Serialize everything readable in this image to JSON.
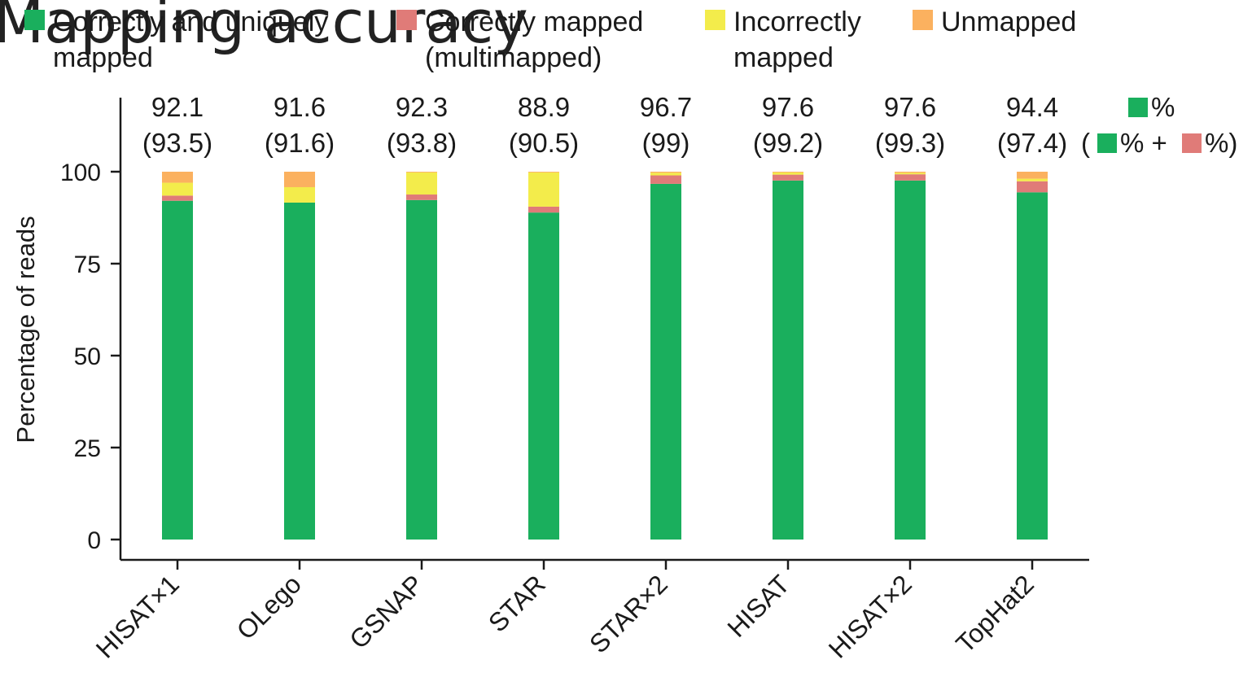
{
  "chart_data": {
    "type": "bar",
    "stacked": true,
    "title": "Mapping accuracy",
    "ylabel": "Percentage of reads",
    "xlabel": "",
    "ylim": [
      0,
      100
    ],
    "yticks": [
      "0",
      "25",
      "50",
      "75",
      "100"
    ],
    "grid": false,
    "legend_position": "top",
    "categories": [
      "HISAT×1",
      "OLego",
      "GSNAP",
      "STAR",
      "STAR×2",
      "HISAT",
      "HISAT×2",
      "TopHat2"
    ],
    "series": [
      {
        "name": "Correctly and uniquely mapped",
        "color": "#1aaf5d",
        "values": [
          92.1,
          91.6,
          92.3,
          88.9,
          96.7,
          97.6,
          97.6,
          94.4
        ]
      },
      {
        "name": "Correctly mapped (multimapped)",
        "color": "#e07b78",
        "values": [
          1.4,
          0.0,
          1.5,
          1.6,
          2.3,
          1.6,
          1.7,
          3.0
        ]
      },
      {
        "name": "Incorrectly mapped",
        "color": "#f3ec4b",
        "values": [
          3.5,
          4.2,
          6.0,
          9.3,
          0.7,
          0.6,
          0.4,
          0.7
        ]
      },
      {
        "name": "Unmapped",
        "color": "#fbb15f",
        "values": [
          3.0,
          4.2,
          0.2,
          0.2,
          0.3,
          0.2,
          0.3,
          1.9
        ]
      }
    ],
    "legend_labels": [
      {
        "line1": "Correctly and uniquely",
        "line2": "mapped"
      },
      {
        "line1": "Correctly mapped",
        "line2": "(multimapped)"
      },
      {
        "line1": "Incorrectly",
        "line2": "mapped"
      },
      {
        "line1": "Unmapped",
        "line2": ""
      }
    ],
    "bar_labels": [
      {
        "top": "92.1",
        "bottom": "(93.5)"
      },
      {
        "top": "91.6",
        "bottom": "(91.6)"
      },
      {
        "top": "92.3",
        "bottom": "(93.8)"
      },
      {
        "top": "88.9",
        "bottom": "(90.5)"
      },
      {
        "top": "96.7",
        "bottom": "(99)"
      },
      {
        "top": "97.6",
        "bottom": "(99.2)"
      },
      {
        "top": "97.6",
        "bottom": "(99.3)"
      },
      {
        "top": "94.4",
        "bottom": "(97.4)"
      }
    ],
    "key": {
      "line1_text": "%",
      "line2_open": "(",
      "line2_plus": "% +",
      "line2_close": "%)"
    }
  }
}
